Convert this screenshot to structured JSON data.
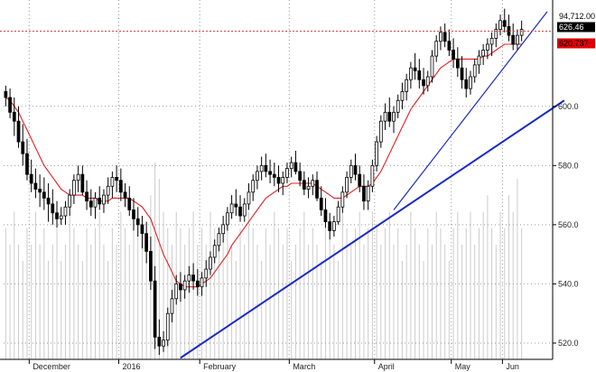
{
  "chart_data": {
    "type": "candlestick",
    "y_axis": {
      "ticks": [
        "520.0",
        "540.0",
        "560.0",
        "580.0",
        "600.0"
      ],
      "tick_values": [
        520,
        540,
        560,
        580,
        600
      ],
      "ylim": [
        514.5,
        633.5
      ]
    },
    "x_axis": {
      "labels": [
        "December",
        "2016",
        "February",
        "March",
        "April",
        "May",
        "Jun"
      ]
    },
    "badges": {
      "volume": "94,712.00",
      "price": "626.46",
      "moving_average": "620.737"
    },
    "reference_level": 625.4,
    "colors": {
      "candle": "#000000",
      "moving_average": "#e02020",
      "trendline": "#1a28c8",
      "volume": "#cccccc",
      "reference_line": "#e04040",
      "ma_badge": "#e00000",
      "price_badge": "#000000"
    },
    "series": {
      "ohlc": [
        [
          605,
          607,
          600,
          603
        ],
        [
          603,
          606,
          596,
          598
        ],
        [
          598,
          603,
          590,
          595
        ],
        [
          595,
          600,
          586,
          588
        ],
        [
          588,
          594,
          580,
          584
        ],
        [
          584,
          589,
          575,
          577
        ],
        [
          577,
          582,
          571,
          574
        ],
        [
          574,
          579,
          569,
          572
        ],
        [
          572,
          577,
          566,
          571
        ],
        [
          571,
          576,
          565,
          569
        ],
        [
          569,
          574,
          561,
          567
        ],
        [
          567,
          572,
          560,
          564
        ],
        [
          564,
          568,
          559,
          562
        ],
        [
          562,
          566,
          560,
          563
        ],
        [
          563,
          568,
          560,
          566
        ],
        [
          566,
          572,
          563,
          570
        ],
        [
          570,
          577,
          567,
          575
        ],
        [
          575,
          580,
          571,
          577
        ],
        [
          577,
          580,
          570,
          571
        ],
        [
          571,
          575,
          565,
          568
        ],
        [
          568,
          572,
          563,
          566
        ],
        [
          566,
          571,
          562,
          569
        ],
        [
          569,
          573,
          565,
          567
        ],
        [
          567,
          572,
          564,
          570
        ],
        [
          570,
          576,
          567,
          573
        ],
        [
          573,
          578,
          569,
          576
        ],
        [
          576,
          580,
          571,
          575
        ],
        [
          575,
          579,
          568,
          571
        ],
        [
          571,
          574,
          566,
          569
        ],
        [
          569,
          573,
          563,
          565
        ],
        [
          565,
          569,
          558,
          562
        ],
        [
          562,
          566,
          556,
          560
        ],
        [
          560,
          563,
          552,
          557
        ],
        [
          557,
          561,
          547,
          551
        ],
        [
          551,
          556,
          538,
          541
        ],
        [
          541,
          546,
          518,
          522
        ],
        [
          522,
          528,
          516,
          519
        ],
        [
          519,
          524,
          517,
          521
        ],
        [
          521,
          532,
          519,
          530
        ],
        [
          530,
          538,
          527,
          535
        ],
        [
          535,
          543,
          533,
          540
        ],
        [
          540,
          544,
          534,
          538
        ],
        [
          538,
          543,
          535,
          541
        ],
        [
          541,
          546,
          537,
          543
        ],
        [
          543,
          547,
          538,
          541
        ],
        [
          541,
          545,
          536,
          539
        ],
        [
          539,
          544,
          536,
          542
        ],
        [
          542,
          548,
          539,
          545
        ],
        [
          545,
          551,
          543,
          549
        ],
        [
          549,
          555,
          547,
          553
        ],
        [
          553,
          559,
          551,
          557
        ],
        [
          557,
          563,
          554,
          560
        ],
        [
          560,
          566,
          558,
          564
        ],
        [
          564,
          570,
          562,
          567
        ],
        [
          567,
          572,
          563,
          566
        ],
        [
          566,
          570,
          561,
          563
        ],
        [
          563,
          569,
          561,
          567
        ],
        [
          567,
          574,
          565,
          571
        ],
        [
          571,
          577,
          568,
          575
        ],
        [
          575,
          580,
          572,
          578
        ],
        [
          578,
          583,
          575,
          580
        ],
        [
          580,
          584,
          576,
          578
        ],
        [
          578,
          582,
          574,
          577
        ],
        [
          577,
          581,
          573,
          576
        ],
        [
          576,
          580,
          571,
          574
        ],
        [
          574,
          578,
          570,
          576
        ],
        [
          576,
          581,
          574,
          579
        ],
        [
          579,
          583,
          576,
          581
        ],
        [
          581,
          585,
          577,
          578
        ],
        [
          578,
          581,
          573,
          575
        ],
        [
          575,
          578,
          570,
          572
        ],
        [
          572,
          576,
          569,
          573
        ],
        [
          573,
          577,
          570,
          575
        ],
        [
          575,
          578,
          568,
          569
        ],
        [
          569,
          573,
          563,
          565
        ],
        [
          565,
          569,
          559,
          561
        ],
        [
          561,
          564,
          555,
          558
        ],
        [
          558,
          563,
          556,
          561
        ],
        [
          561,
          568,
          560,
          566
        ],
        [
          566,
          573,
          564,
          571
        ],
        [
          571,
          578,
          569,
          576
        ],
        [
          576,
          582,
          574,
          580
        ],
        [
          580,
          584,
          575,
          577
        ],
        [
          577,
          580,
          571,
          573
        ],
        [
          573,
          577,
          565,
          568
        ],
        [
          568,
          575,
          565,
          573
        ],
        [
          573,
          582,
          571,
          580
        ],
        [
          580,
          590,
          578,
          588
        ],
        [
          588,
          597,
          586,
          595
        ],
        [
          595,
          601,
          592,
          598
        ],
        [
          598,
          603,
          593,
          595
        ],
        [
          595,
          600,
          591,
          598
        ],
        [
          598,
          604,
          596,
          602
        ],
        [
          602,
          608,
          599,
          605
        ],
        [
          605,
          611,
          602,
          609
        ],
        [
          609,
          615,
          606,
          613
        ],
        [
          613,
          618,
          609,
          612
        ],
        [
          612,
          616,
          606,
          609
        ],
        [
          609,
          613,
          604,
          607
        ],
        [
          607,
          612,
          605,
          610
        ],
        [
          610,
          619,
          608,
          617
        ],
        [
          617,
          624,
          615,
          622
        ],
        [
          622,
          627,
          619,
          625
        ],
        [
          625,
          628,
          620,
          622
        ],
        [
          622,
          626,
          617,
          619
        ],
        [
          619,
          623,
          613,
          616
        ],
        [
          616,
          620,
          610,
          613
        ],
        [
          613,
          617,
          606,
          609
        ],
        [
          609,
          613,
          603,
          606
        ],
        [
          606,
          612,
          604,
          610
        ],
        [
          610,
          616,
          608,
          614
        ],
        [
          614,
          619,
          611,
          617
        ],
        [
          617,
          621,
          614,
          619
        ],
        [
          619,
          623,
          616,
          621
        ],
        [
          621,
          625,
          617,
          623
        ],
        [
          623,
          628,
          620,
          626
        ],
        [
          626,
          631,
          624,
          629
        ],
        [
          629,
          633,
          625,
          627
        ],
        [
          627,
          631,
          622,
          624
        ],
        [
          624,
          628,
          619,
          621
        ],
        [
          621,
          626,
          619,
          624
        ],
        [
          624,
          629,
          622,
          626
        ]
      ],
      "moving_average": [
        603,
        602,
        600,
        598,
        595,
        592,
        589,
        586,
        583,
        580,
        578,
        576,
        574,
        572,
        571,
        570,
        570,
        570,
        570,
        569,
        569,
        569,
        568,
        568,
        568,
        569,
        569,
        569,
        569,
        569,
        568,
        567,
        566,
        564,
        562,
        558,
        554,
        550,
        547,
        544,
        541,
        540,
        539,
        539,
        539,
        539,
        540,
        541,
        542,
        544,
        546,
        548,
        550,
        553,
        555,
        557,
        559,
        561,
        563,
        565,
        567,
        569,
        570,
        571,
        572,
        573,
        573,
        574,
        574,
        574,
        574,
        574,
        574,
        573,
        572,
        571,
        570,
        569,
        569,
        569,
        570,
        571,
        572,
        573,
        573,
        573,
        574,
        576,
        578,
        581,
        584,
        587,
        590,
        593,
        596,
        599,
        601,
        603,
        605,
        607,
        609,
        611,
        613,
        614,
        615,
        616,
        616,
        616,
        616,
        616,
        616,
        616,
        617,
        617,
        618,
        619,
        620,
        621,
        621,
        621,
        621,
        621
      ]
    },
    "volume": [
      8,
      7,
      9,
      7,
      6,
      8,
      7,
      9,
      7,
      8,
      6,
      7,
      8,
      6,
      7,
      9,
      8,
      7,
      6,
      8,
      7,
      8,
      9,
      7,
      6,
      8,
      7,
      9,
      8,
      7,
      8,
      9,
      7,
      8,
      10,
      12,
      11,
      9,
      8,
      7,
      9,
      8,
      7,
      8,
      9,
      7,
      8,
      7,
      9,
      8,
      7,
      8,
      9,
      7,
      6,
      8,
      7,
      9,
      8,
      7,
      6,
      8,
      7,
      9,
      8,
      7,
      8,
      6,
      7,
      8,
      9,
      7,
      8,
      7,
      6,
      9,
      8,
      7,
      6,
      9,
      8,
      7,
      8,
      9,
      7,
      8,
      9,
      8,
      7,
      8,
      9,
      7,
      8,
      6,
      7,
      9,
      8,
      7,
      6,
      8,
      7,
      9,
      8,
      7,
      6,
      8,
      9,
      7,
      8,
      9,
      7,
      8,
      9,
      10,
      8,
      7,
      9,
      8,
      10,
      9,
      11,
      8
    ],
    "volume_max": 12,
    "month_breaks": [
      6,
      27,
      46,
      67,
      87,
      105,
      117
    ],
    "trendlines": [
      {
        "from": [
          41,
          515
        ],
        "to": [
          131,
          602
        ]
      },
      {
        "from": [
          91,
          565
        ],
        "to": [
          127,
          632
        ]
      }
    ]
  }
}
